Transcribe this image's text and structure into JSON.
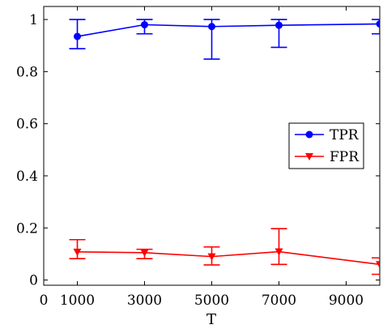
{
  "chart_data": {
    "type": "line",
    "xlabel": "T",
    "ylabel": "",
    "xlim": [
      0,
      10000
    ],
    "ylim": [
      -0.02,
      1.05
    ],
    "x_ticks": [
      0,
      1000,
      3000,
      5000,
      7000,
      9000
    ],
    "x_tick_labels": [
      "0",
      "1000",
      "3000",
      "5000",
      "7000",
      "9000"
    ],
    "y_ticks": [
      0,
      0.2,
      0.4,
      0.6,
      0.8,
      1
    ],
    "y_tick_labels": [
      "0",
      "0.2",
      "0.4",
      "0.6",
      "0.8",
      "1"
    ],
    "grid": false,
    "legend_position": "center-right",
    "x": [
      1000,
      3000,
      5000,
      7000,
      10000
    ],
    "series": [
      {
        "name": "TPR",
        "color": "#0000ff",
        "marker": "circle",
        "values": [
          0.935,
          0.98,
          0.973,
          0.978,
          0.983
        ],
        "err_low": [
          0.888,
          0.945,
          0.848,
          0.893,
          0.945
        ],
        "err_high": [
          1.0,
          1.0,
          1.0,
          1.0,
          1.0
        ]
      },
      {
        "name": "FPR",
        "color": "#ff0000",
        "marker": "triangle-down",
        "values": [
          0.108,
          0.105,
          0.09,
          0.109,
          0.06
        ],
        "err_low": [
          0.082,
          0.082,
          0.058,
          0.06,
          0.022
        ],
        "err_high": [
          0.155,
          0.118,
          0.127,
          0.197,
          0.085
        ]
      }
    ]
  }
}
